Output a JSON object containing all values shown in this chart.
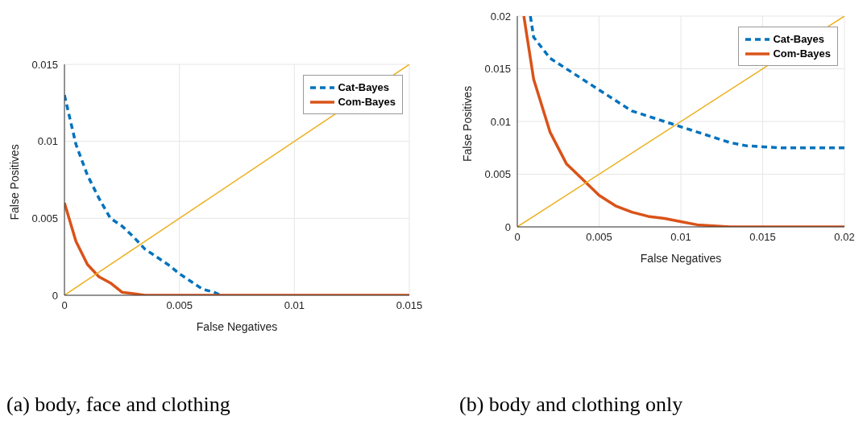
{
  "chart_data": [
    {
      "type": "line",
      "title": "(a) body, face and clothing",
      "xlabel": "False Negatives",
      "ylabel": "False Positives",
      "xlim": [
        0,
        0.015
      ],
      "xticks": [
        0,
        0.005,
        0.01,
        0.015
      ],
      "ylim": [
        0,
        0.015
      ],
      "yticks": [
        0,
        0.005,
        0.01,
        0.015
      ],
      "grid": true,
      "legend": "top right",
      "series": [
        {
          "name": "Cat-Bayes",
          "color": "#0072bd",
          "line_style": "dashed",
          "x": [
            0,
            0.0005,
            0.001,
            0.0015,
            0.002,
            0.0025,
            0.003,
            0.0035,
            0.004,
            0.0045,
            0.005,
            0.0055,
            0.006,
            0.0065,
            0.0068
          ],
          "values": [
            0.013,
            0.0098,
            0.0078,
            0.0063,
            0.005,
            0.0045,
            0.0038,
            0.003,
            0.0025,
            0.002,
            0.0014,
            0.0009,
            0.0004,
            0.0002,
            0
          ]
        },
        {
          "name": "Com-Bayes",
          "color": "#d95319",
          "line_style": "solid",
          "x": [
            0,
            0.0005,
            0.001,
            0.0015,
            0.002,
            0.0025,
            0.003,
            0.0035,
            0.015
          ],
          "values": [
            0.006,
            0.0035,
            0.002,
            0.0012,
            0.0008,
            0.0002,
            0.0001,
            0,
            0
          ]
        },
        {
          "color": "#edb120",
          "line_style": "solid",
          "x": [
            0,
            0.015
          ],
          "values": [
            0,
            0.015
          ]
        }
      ]
    },
    {
      "type": "line",
      "title": "(b) body and clothing only",
      "xlabel": "False Negatives",
      "ylabel": "False Positives",
      "xlim": [
        0,
        0.02
      ],
      "xticks": [
        0,
        0.005,
        0.01,
        0.015,
        0.02
      ],
      "ylim": [
        0,
        0.02
      ],
      "yticks": [
        0,
        0.005,
        0.01,
        0.015,
        0.02
      ],
      "grid": true,
      "legend": "top right",
      "series": [
        {
          "name": "Cat-Bayes",
          "color": "#0072bd",
          "line_style": "dashed",
          "x": [
            0.0008,
            0.001,
            0.002,
            0.003,
            0.004,
            0.005,
            0.006,
            0.007,
            0.008,
            0.009,
            0.01,
            0.011,
            0.012,
            0.013,
            0.014,
            0.015,
            0.016,
            0.02
          ],
          "values": [
            0.02,
            0.018,
            0.016,
            0.015,
            0.014,
            0.013,
            0.012,
            0.011,
            0.0105,
            0.01,
            0.0095,
            0.009,
            0.0085,
            0.008,
            0.0077,
            0.0076,
            0.0075,
            0.0075
          ]
        },
        {
          "name": "Com-Bayes",
          "color": "#d95319",
          "line_style": "solid",
          "x": [
            0.0004,
            0.001,
            0.002,
            0.003,
            0.004,
            0.005,
            0.006,
            0.007,
            0.008,
            0.009,
            0.01,
            0.011,
            0.012,
            0.013,
            0.02
          ],
          "values": [
            0.02,
            0.014,
            0.009,
            0.006,
            0.0045,
            0.003,
            0.002,
            0.0014,
            0.001,
            0.0008,
            0.0005,
            0.0002,
            0.0001,
            0,
            0
          ]
        },
        {
          "color": "#edb120",
          "line_style": "solid",
          "x": [
            0,
            0.02
          ],
          "values": [
            0,
            0.02
          ]
        }
      ]
    }
  ]
}
